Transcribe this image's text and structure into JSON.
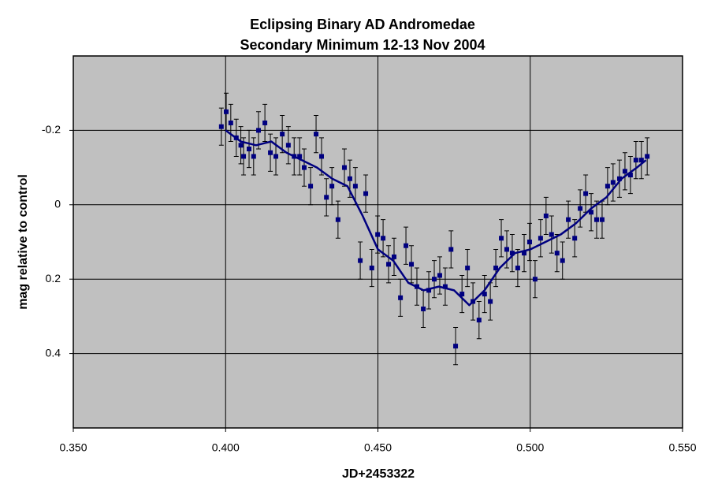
{
  "chart_data": {
    "type": "scatter",
    "title": "Eclipsing Binary AD Andromedae",
    "subtitle": "Secondary Minimum 12-13 Nov 2004",
    "x_label": "JD+2453322",
    "y_label": "mag relative to control",
    "xlim": [
      0.35,
      0.55
    ],
    "xticks": [
      {
        "value": 0.35,
        "label": "0.350"
      },
      {
        "value": 0.4,
        "label": "0.400"
      },
      {
        "value": 0.45,
        "label": "0.450"
      },
      {
        "value": 0.5,
        "label": "0.500"
      },
      {
        "value": 0.55,
        "label": "0.550"
      }
    ],
    "ylim": [
      -0.4,
      0.6
    ],
    "y_inverted": true,
    "yticks": [
      -0.2,
      0,
      0.2,
      0.4
    ],
    "grid": true,
    "background": "#c0c0c0",
    "series": [
      {
        "type": "scatter",
        "color": "#000080",
        "error": 0.05,
        "x": [
          0.3986,
          0.4002,
          0.4017,
          0.4035,
          0.405,
          0.4059,
          0.4077,
          0.4092,
          0.4108,
          0.4129,
          0.4147,
          0.4165,
          0.4186,
          0.4206,
          0.4225,
          0.4243,
          0.4258,
          0.4279,
          0.4297,
          0.4315,
          0.4331,
          0.4349,
          0.4369,
          0.439,
          0.4408,
          0.4426,
          0.4442,
          0.446,
          0.448,
          0.4499,
          0.4517,
          0.4535,
          0.4553,
          0.4574,
          0.4592,
          0.461,
          0.4628,
          0.4649,
          0.4667,
          0.4685,
          0.4703,
          0.4721,
          0.474,
          0.4755,
          0.4776,
          0.4794,
          0.4812,
          0.4832,
          0.485,
          0.4869,
          0.4887,
          0.4905,
          0.4923,
          0.4941,
          0.4959,
          0.498,
          0.4998,
          0.5016,
          0.5034,
          0.5052,
          0.507,
          0.5088,
          0.5106,
          0.5125,
          0.5146,
          0.5164,
          0.5182,
          0.52,
          0.5218,
          0.5236,
          0.5254,
          0.5272,
          0.5293,
          0.5311,
          0.5329,
          0.5347,
          0.5365,
          0.5384
        ],
        "values": [
          -0.21,
          -0.25,
          -0.22,
          -0.18,
          -0.16,
          -0.13,
          -0.15,
          -0.13,
          -0.2,
          -0.22,
          -0.14,
          -0.13,
          -0.19,
          -0.16,
          -0.13,
          -0.13,
          -0.1,
          -0.05,
          -0.19,
          -0.13,
          -0.02,
          -0.05,
          0.04,
          -0.1,
          -0.07,
          -0.05,
          0.15,
          -0.03,
          0.17,
          0.08,
          0.09,
          0.16,
          0.14,
          0.25,
          0.11,
          0.16,
          0.22,
          0.28,
          0.23,
          0.2,
          0.19,
          0.22,
          0.12,
          0.38,
          0.24,
          0.17,
          0.26,
          0.31,
          0.24,
          0.26,
          0.17,
          0.09,
          0.12,
          0.13,
          0.17,
          0.13,
          0.1,
          0.2,
          0.09,
          0.03,
          0.08,
          0.13,
          0.15,
          0.04,
          0.09,
          0.01,
          -0.03,
          0.02,
          0.04,
          0.04,
          -0.05,
          -0.06,
          -0.07,
          -0.09,
          -0.08,
          -0.12,
          -0.12,
          -0.13
        ]
      },
      {
        "type": "line",
        "color": "#000080",
        "x": [
          0.4,
          0.405,
          0.41,
          0.415,
          0.42,
          0.425,
          0.43,
          0.435,
          0.44,
          0.445,
          0.45,
          0.455,
          0.46,
          0.465,
          0.47,
          0.475,
          0.48,
          0.485,
          0.49,
          0.495,
          0.5,
          0.505,
          0.51,
          0.515,
          0.52,
          0.525,
          0.53,
          0.535,
          0.538
        ],
        "values": [
          -0.2,
          -0.17,
          -0.16,
          -0.17,
          -0.14,
          -0.12,
          -0.1,
          -0.07,
          -0.05,
          0.03,
          0.12,
          0.15,
          0.21,
          0.23,
          0.22,
          0.23,
          0.27,
          0.23,
          0.17,
          0.13,
          0.12,
          0.1,
          0.08,
          0.05,
          0.01,
          -0.02,
          -0.07,
          -0.1,
          -0.12
        ]
      }
    ]
  }
}
